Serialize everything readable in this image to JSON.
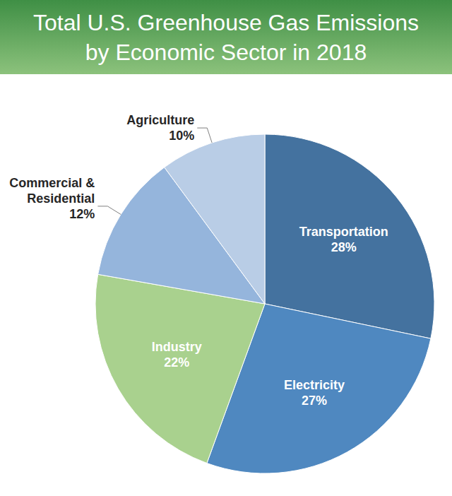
{
  "chart_data": {
    "type": "pie",
    "title": "Total U.S. Greenhouse Gas Emissions by Economic Sector in 2018",
    "categories": [
      "Transportation",
      "Electricity",
      "Industry",
      "Commercial & Residential",
      "Agriculture"
    ],
    "values": [
      28,
      27,
      22,
      12,
      10
    ],
    "value_labels": [
      "28%",
      "27%",
      "22%",
      "12%",
      "10%"
    ],
    "colors": [
      "#44729f",
      "#4f88c0",
      "#a9d18e",
      "#95b5dc",
      "#b9cde6"
    ],
    "data_labels": true
  }
}
